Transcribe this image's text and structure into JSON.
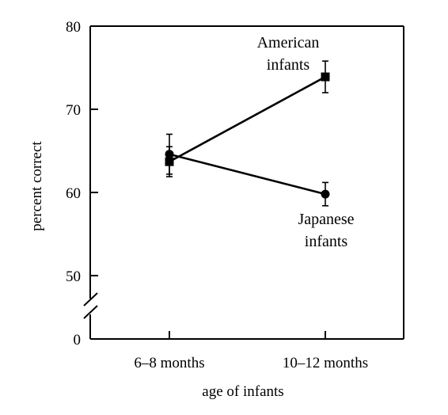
{
  "chart_data": {
    "type": "line",
    "title": "",
    "xlabel": "age of infants",
    "ylabel": "percent correct",
    "categories": [
      "6–8 months",
      "10–12 months"
    ],
    "y_ticks": [
      50,
      60,
      70,
      80
    ],
    "y_break_tick": 0,
    "ylim": [
      50,
      80
    ],
    "grid": false,
    "series": [
      {
        "name": "American infants",
        "name_lines": [
          "American",
          "infants"
        ],
        "marker": "square",
        "values": [
          63.7,
          73.9
        ],
        "error": [
          1.8,
          1.9
        ]
      },
      {
        "name": "Japanese infants",
        "name_lines": [
          "Japanese",
          "infants"
        ],
        "marker": "circle",
        "values": [
          64.6,
          59.8
        ],
        "error": [
          2.4,
          1.4
        ]
      }
    ]
  }
}
